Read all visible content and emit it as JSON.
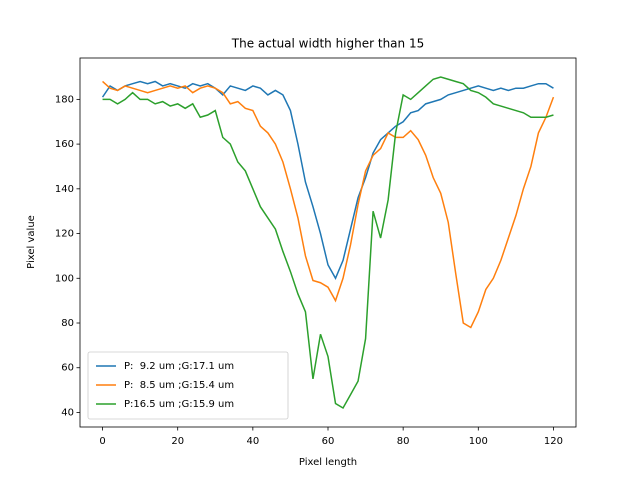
{
  "chart_data": {
    "type": "line",
    "title": "The actual width higher than 15",
    "x_label": "Pixel length",
    "y_label": "Pixel value",
    "x": [
      0,
      2,
      4,
      6,
      8,
      10,
      12,
      14,
      16,
      18,
      20,
      22,
      24,
      26,
      28,
      30,
      32,
      34,
      36,
      38,
      40,
      42,
      44,
      46,
      48,
      50,
      52,
      54,
      56,
      58,
      60,
      62,
      64,
      66,
      68,
      70,
      72,
      74,
      76,
      78,
      80,
      82,
      84,
      86,
      88,
      90,
      92,
      94,
      96,
      98,
      100,
      102,
      104,
      106,
      108,
      110,
      112,
      114,
      116,
      118,
      120
    ],
    "series": [
      {
        "name": "P:  9.2 um ;G:17.1 um",
        "color": "#1f77b4",
        "values": [
          181,
          186,
          184,
          186,
          187,
          188,
          187,
          188,
          186,
          187,
          186,
          185,
          187,
          186,
          187,
          185,
          182,
          186,
          185,
          184,
          186,
          185,
          182,
          184,
          182,
          175,
          160,
          143,
          132,
          120,
          106,
          100,
          108,
          122,
          136,
          145,
          156,
          162,
          165,
          168,
          170,
          174,
          175,
          178,
          179,
          180,
          182,
          183,
          184,
          185,
          186,
          185,
          184,
          185,
          184,
          185,
          185,
          186,
          187,
          187,
          185
        ]
      },
      {
        "name": "P:  8.5 um ;G:15.4 um",
        "color": "#ff7f0e",
        "values": [
          188,
          185,
          184,
          186,
          185,
          184,
          183,
          184,
          185,
          186,
          185,
          186,
          183,
          185,
          186,
          185,
          183,
          178,
          179,
          176,
          175,
          168,
          165,
          160,
          152,
          140,
          127,
          110,
          99,
          98,
          96,
          90,
          100,
          115,
          133,
          148,
          155,
          158,
          165,
          163,
          163,
          166,
          162,
          155,
          145,
          138,
          125,
          102,
          80,
          78,
          85,
          95,
          100,
          108,
          118,
          128,
          140,
          150,
          165,
          172,
          181
        ]
      },
      {
        "name": "P:16.5 um ;G:15.9 um",
        "color": "#2ca02c",
        "values": [
          180,
          180,
          178,
          180,
          183,
          180,
          180,
          178,
          179,
          177,
          178,
          176,
          178,
          172,
          173,
          175,
          163,
          160,
          152,
          148,
          140,
          132,
          127,
          122,
          112,
          103,
          93,
          85,
          55,
          75,
          65,
          44,
          42,
          48,
          54,
          73,
          130,
          118,
          135,
          165,
          182,
          180,
          183,
          186,
          189,
          190,
          189,
          188,
          187,
          184,
          183,
          181,
          178,
          177,
          176,
          175,
          174,
          172,
          172,
          172,
          173
        ]
      }
    ],
    "xlim": [
      -6,
      126
    ],
    "ylim": [
      33.5,
      198.5
    ],
    "xticks": [
      0,
      20,
      40,
      60,
      80,
      100,
      120
    ],
    "yticks": [
      40,
      60,
      80,
      100,
      120,
      140,
      160,
      180
    ],
    "legend": "lower left"
  }
}
